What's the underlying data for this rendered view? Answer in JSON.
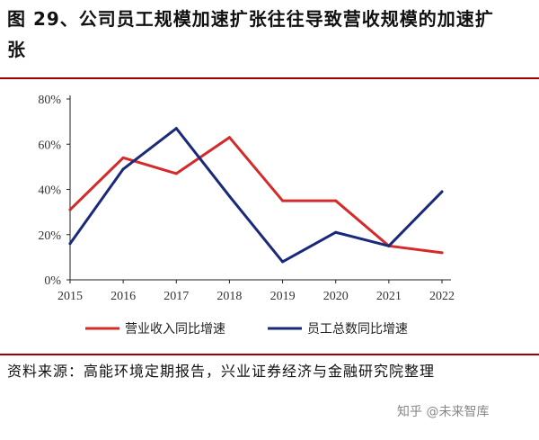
{
  "header": {
    "title": "图 29、公司员工规模加速扩张往往导致营收规模的加速扩张"
  },
  "footer": {
    "source": "资料来源：高能环境定期报告，兴业证券经济与金融研究院整理",
    "watermark": "知乎 @未来智库"
  },
  "colors": {
    "accent": "#a00000"
  },
  "chart_data": {
    "type": "line",
    "title": "",
    "xlabel": "",
    "ylabel": "",
    "x": [
      "2015",
      "2016",
      "2017",
      "2018",
      "2019",
      "2020",
      "2021",
      "2022"
    ],
    "y_ticks": [
      "0%",
      "20%",
      "40%",
      "60%",
      "80%"
    ],
    "ylim": [
      0,
      80
    ],
    "grid": false,
    "legend_position": "bottom",
    "series": [
      {
        "name": "营业收入同比增速",
        "color": "#d42a2a",
        "values": [
          31,
          54,
          47,
          63,
          35,
          35,
          15,
          12
        ]
      },
      {
        "name": "员工总数同比增速",
        "color": "#1a2a7a",
        "values": [
          16,
          49,
          67,
          37,
          8,
          21,
          15,
          39
        ]
      }
    ]
  }
}
